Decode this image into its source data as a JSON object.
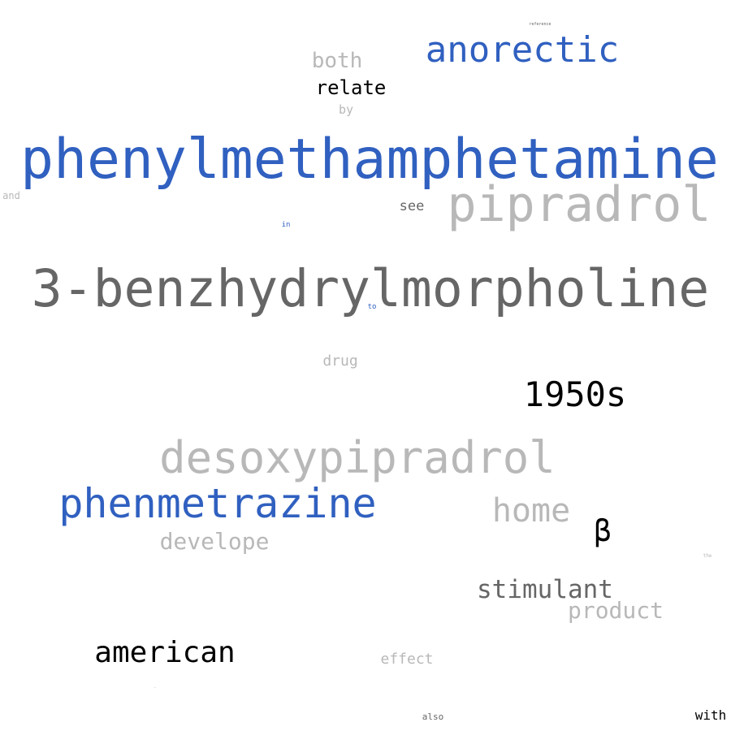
{
  "palette": {
    "blue": "#3060c0",
    "light_gray": "#b8b8b8",
    "dark_gray": "#666666",
    "black": "#000000"
  },
  "words": [
    {
      "text": "phenylmethamphetamine",
      "tone": "blue",
      "weight": 1.0
    },
    {
      "text": "3-benzhydrylmorpholine",
      "tone": "dark_gray",
      "weight": 0.98
    },
    {
      "text": "pipradrol",
      "tone": "light_gray",
      "weight": 0.94
    },
    {
      "text": "desoxypipradrol",
      "tone": "light_gray",
      "weight": 0.88
    },
    {
      "text": "phenmetrazine",
      "tone": "blue",
      "weight": 0.82
    },
    {
      "text": "anorectic",
      "tone": "blue",
      "weight": 0.72
    },
    {
      "text": "1950s",
      "tone": "black",
      "weight": 0.68
    },
    {
      "text": "home",
      "tone": "light_gray",
      "weight": 0.62
    },
    {
      "text": "american",
      "tone": "black",
      "weight": 0.58
    },
    {
      "text": "β",
      "tone": "black",
      "weight": 0.56
    },
    {
      "text": "stimulant",
      "tone": "dark_gray",
      "weight": 0.5
    },
    {
      "text": "develope",
      "tone": "light_gray",
      "weight": 0.46
    },
    {
      "text": "product",
      "tone": "light_gray",
      "weight": 0.46
    },
    {
      "text": "both",
      "tone": "light_gray",
      "weight": 0.44
    },
    {
      "text": "relate",
      "tone": "black",
      "weight": 0.42
    },
    {
      "text": "drug",
      "tone": "light_gray",
      "weight": 0.32
    },
    {
      "text": "effect",
      "tone": "light_gray",
      "weight": 0.32
    },
    {
      "text": "see",
      "tone": "dark_gray",
      "weight": 0.3
    },
    {
      "text": "with",
      "tone": "black",
      "weight": 0.3
    },
    {
      "text": "by",
      "tone": "light_gray",
      "weight": 0.28
    },
    {
      "text": "and",
      "tone": "light_gray",
      "weight": 0.22
    },
    {
      "text": "also",
      "tone": "dark_gray",
      "weight": 0.2
    },
    {
      "text": "in",
      "tone": "blue",
      "weight": 0.16
    },
    {
      "text": "to",
      "tone": "blue",
      "weight": 0.16
    },
    {
      "text": "the",
      "tone": "light_gray",
      "weight": 0.1
    },
    {
      "text": "reference",
      "tone": "dark_gray",
      "weight": 0.08
    },
    {
      "text": "-",
      "tone": "light_gray",
      "weight": 0.08
    }
  ]
}
